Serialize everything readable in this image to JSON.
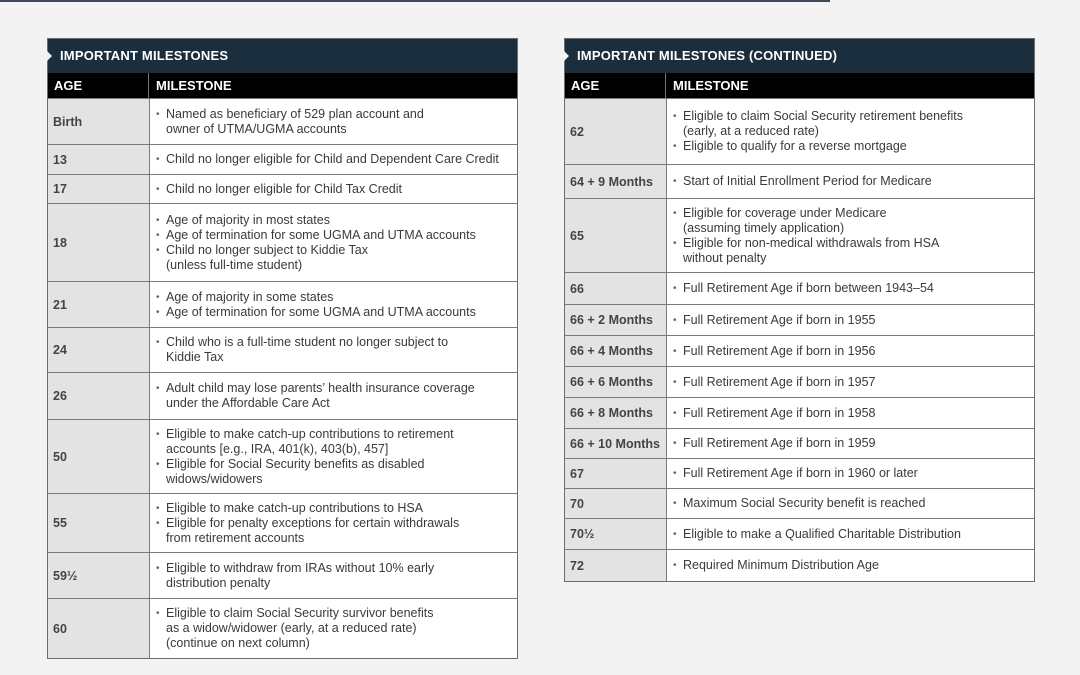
{
  "left": {
    "title": "IMPORTANT MILESTONES",
    "col_age": "AGE",
    "col_milestone": "MILESTONE",
    "rows": [
      {
        "age": "Birth",
        "items": [
          "Named as beneficiary of 529 plan account and\nowner of UTMA/UGMA accounts"
        ]
      },
      {
        "age": "13",
        "items": [
          "Child no longer eligible for Child and Dependent Care Credit"
        ]
      },
      {
        "age": "17",
        "items": [
          "Child no longer eligible for Child Tax Credit"
        ]
      },
      {
        "age": "18",
        "items": [
          "Age of majority in most states",
          "Age of termination for some UGMA and UTMA accounts",
          "Child no longer subject to Kiddie Tax\n(unless full-time student)"
        ]
      },
      {
        "age": "21",
        "items": [
          "Age of majority in some states",
          "Age of termination for some UGMA and UTMA accounts"
        ]
      },
      {
        "age": "24",
        "items": [
          "Child who is a full-time student no longer subject to\nKiddie Tax"
        ]
      },
      {
        "age": "26",
        "items": [
          "Adult child may lose parents’ health insurance coverage\nunder the Affordable Care Act"
        ]
      },
      {
        "age": "50",
        "items": [
          "Eligible to make catch-up contributions to retirement\naccounts [e.g., IRA, 401(k), 403(b), 457]",
          "Eligible for Social Security benefits as disabled\nwidows/widowers"
        ]
      },
      {
        "age": "55",
        "items": [
          "Eligible to make catch-up contributions to HSA",
          "Eligible for penalty exceptions for certain withdrawals\nfrom retirement accounts"
        ]
      },
      {
        "age": "59½",
        "items": [
          "Eligible to withdraw from IRAs without 10% early\ndistribution penalty"
        ]
      },
      {
        "age": "60",
        "items": [
          "Eligible to claim Social Security survivor benefits\nas a widow/widower (early, at a reduced rate)\n(continue on next column)"
        ]
      }
    ]
  },
  "right": {
    "title": "IMPORTANT MILESTONES (CONTINUED)",
    "col_age": "AGE",
    "col_milestone": "MILESTONE",
    "rows": [
      {
        "age": "62",
        "items": [
          "Eligible to claim Social Security retirement benefits\n(early, at a reduced rate)",
          "Eligible to qualify for a reverse mortgage"
        ]
      },
      {
        "age": "64 + 9 Months",
        "items": [
          "Start of Initial Enrollment Period for Medicare"
        ]
      },
      {
        "age": "65",
        "items": [
          "Eligible for coverage under Medicare\n(assuming timely application)",
          "Eligible for non-medical withdrawals from HSA\nwithout penalty"
        ]
      },
      {
        "age": "66",
        "items": [
          "Full Retirement Age if born between 1943–54"
        ]
      },
      {
        "age": "66 + 2 Months",
        "items": [
          "Full Retirement Age if born in 1955"
        ]
      },
      {
        "age": "66 + 4 Months",
        "items": [
          "Full Retirement Age if born in 1956"
        ]
      },
      {
        "age": "66 + 6 Months",
        "items": [
          "Full Retirement Age if born in 1957"
        ]
      },
      {
        "age": "66 + 8 Months",
        "items": [
          "Full Retirement Age if born in 1958"
        ]
      },
      {
        "age": "66 + 10 Months",
        "items": [
          "Full Retirement Age if born in 1959"
        ]
      },
      {
        "age": "67",
        "items": [
          "Full Retirement Age if born in 1960 or later"
        ]
      },
      {
        "age": "70",
        "items": [
          "Maximum Social Security benefit is reached"
        ]
      },
      {
        "age": "70½",
        "items": [
          "Eligible to make a Qualified Charitable Distribution"
        ]
      },
      {
        "age": "72",
        "items": [
          "Required Minimum Distribution Age"
        ]
      }
    ]
  }
}
